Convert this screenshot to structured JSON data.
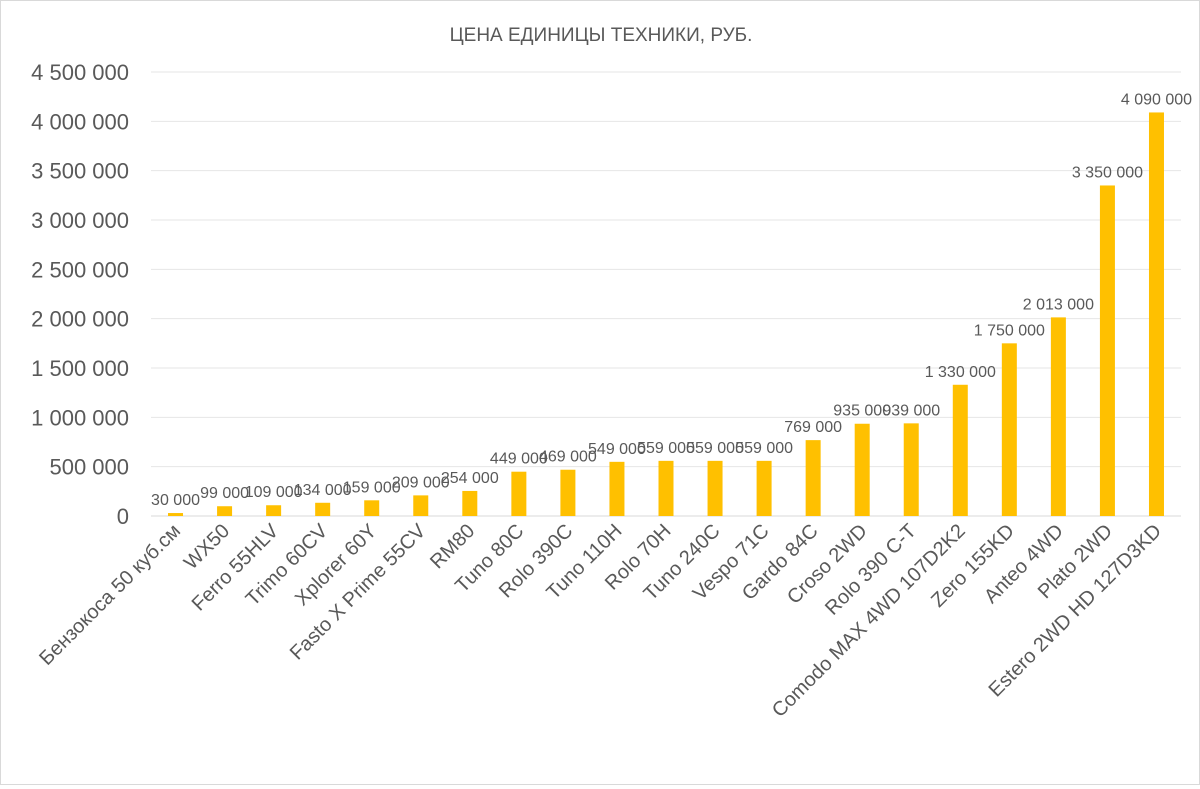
{
  "chart_data": {
    "type": "bar",
    "title": "ЦЕНА ЕДИНИЦЫ ТЕХНИКИ, РУБ.",
    "xlabel": "",
    "ylabel": "",
    "ylim": [
      0,
      4500000
    ],
    "yticks": [
      0,
      500000,
      1000000,
      1500000,
      2000000,
      2500000,
      3000000,
      3500000,
      4000000,
      4500000
    ],
    "ytick_labels": [
      "0",
      "500 000",
      "1 000 000",
      "1 500 000",
      "2 000 000",
      "2 500 000",
      "3 000 000",
      "3 500 000",
      "4 000 000",
      "4 500 000"
    ],
    "grid": true,
    "bar_color": "#FFC000",
    "categories": [
      "Бензокоса 50 куб.см",
      "WX50",
      "Ferro 55HLV",
      "Trimo 60CV",
      "Xplorer 60Y",
      "Fasto X Prime 55CV",
      "RM80",
      "Tuno 80C",
      "Rolo 390C",
      "Tuno 110H",
      "Rolo 70H",
      "Tuno 240C",
      "Vespo 71C",
      "Gardo 84C",
      "Croso 2WD",
      "Rolo 390 C-T",
      "Comodo MAX 4WD 107D2K2",
      "Zero 155KD",
      "Anteo 4WD",
      "Plato 2WD",
      "Estero 2WD HD 127D3KD"
    ],
    "values": [
      30000,
      99000,
      109000,
      134000,
      159000,
      209000,
      254000,
      449000,
      469000,
      549000,
      559000,
      559000,
      559000,
      769000,
      935000,
      939000,
      1330000,
      1750000,
      2013000,
      3350000,
      4090000
    ],
    "data_labels": [
      "30 000",
      "99 000",
      "109 000",
      "134 000",
      "159 000",
      "209 000",
      "254 000",
      "449 000",
      "469 000",
      "549 000",
      "559 000",
      "559 000",
      "559 000",
      "769 000",
      "935 000",
      "939 000",
      "1 330 000",
      "1 750 000",
      "2 013 000",
      "3 350 000",
      "4 090 000"
    ]
  }
}
